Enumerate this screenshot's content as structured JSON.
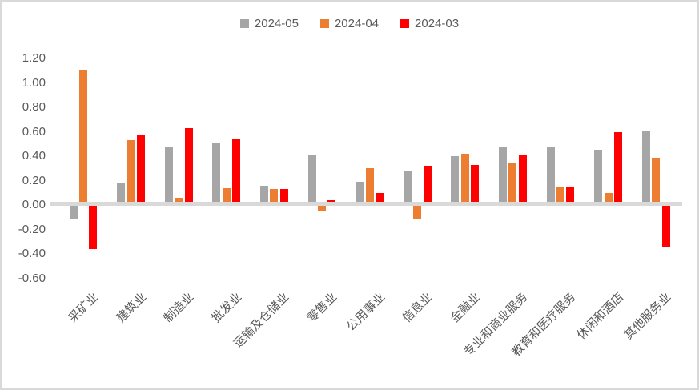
{
  "colors": {
    "background": "#FFFFFF",
    "border": "#D9D9D9",
    "axis_line": "#D9D9D9",
    "text": "#595959"
  },
  "chart_data": {
    "type": "bar",
    "title": "",
    "xlabel": "",
    "ylabel": "",
    "grid": false,
    "legend_position": "top",
    "ylim": [
      -0.6,
      1.2
    ],
    "y_ticks": [
      "1.20",
      "1.00",
      "0.80",
      "0.60",
      "0.40",
      "0.20",
      "0.00",
      "-0.20",
      "-0.40",
      "-0.60"
    ],
    "y_tick_values": [
      1.2,
      1.0,
      0.8,
      0.6,
      0.4,
      0.2,
      0.0,
      -0.2,
      -0.4,
      -0.6
    ],
    "categories": [
      "采矿业",
      "建筑业",
      "制造业",
      "批发业",
      "运输及仓储业",
      "零售业",
      "公用事业",
      "信息业",
      "金融业",
      "专业和商业服务",
      "教育和医疗服务",
      "休闲和酒店",
      "其他服务业"
    ],
    "series": [
      {
        "name": "2024-05",
        "color": "#A6A6A6",
        "values": [
          -0.12,
          0.18,
          0.47,
          0.51,
          0.16,
          0.41,
          0.19,
          0.28,
          0.4,
          0.48,
          0.47,
          0.45,
          0.61
        ]
      },
      {
        "name": "2024-04",
        "color": "#ED7D31",
        "values": [
          1.1,
          0.53,
          0.06,
          0.14,
          0.13,
          -0.05,
          0.3,
          -0.12,
          0.42,
          0.34,
          0.15,
          0.1,
          0.39
        ]
      },
      {
        "name": "2024-03",
        "color": "#FF0000",
        "values": [
          -0.36,
          0.58,
          0.63,
          0.54,
          0.13,
          0.04,
          0.1,
          0.32,
          0.33,
          0.41,
          0.15,
          0.6,
          -0.35
        ]
      }
    ]
  }
}
